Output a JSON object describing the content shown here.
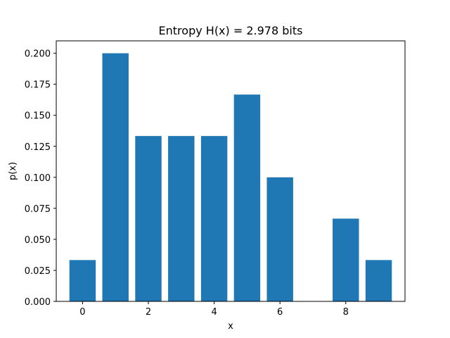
{
  "chart_data": {
    "type": "bar",
    "title": "Entropy H(x) = 2.978 bits",
    "xlabel": "x",
    "ylabel": "p(x)",
    "x": [
      0,
      1,
      2,
      3,
      4,
      5,
      6,
      7,
      8,
      9
    ],
    "values": [
      0.0333,
      0.2,
      0.1333,
      0.1333,
      0.1333,
      0.1667,
      0.1,
      0.0,
      0.0667,
      0.0333
    ],
    "xlim": [
      -0.8,
      9.8
    ],
    "ylim": [
      0,
      0.21
    ],
    "xticks": [
      0,
      2,
      4,
      6,
      8
    ],
    "xtick_labels": [
      "0",
      "2",
      "4",
      "6",
      "8"
    ],
    "yticks": [
      0.0,
      0.025,
      0.05,
      0.075,
      0.1,
      0.125,
      0.15,
      0.175,
      0.2
    ],
    "ytick_labels": [
      "0.000",
      "0.025",
      "0.050",
      "0.075",
      "0.100",
      "0.125",
      "0.150",
      "0.175",
      "0.200"
    ],
    "bar_color": "#1f77b4",
    "grid": false
  }
}
